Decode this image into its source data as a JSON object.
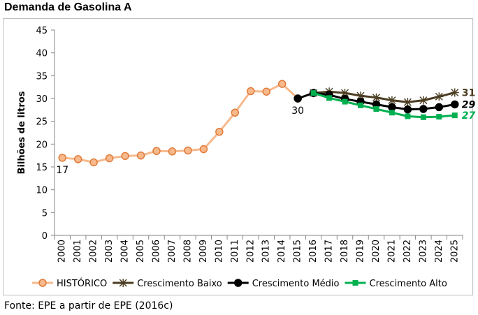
{
  "title": "Demanda de Gasolina A",
  "source": "Fonte: EPE a partir de EPE (2016c)",
  "chart_data": {
    "type": "line",
    "ylabel": "Bilhões de litros",
    "xlabel": "",
    "ylim": [
      0,
      45
    ],
    "y_ticks": [
      0,
      5,
      10,
      15,
      20,
      25,
      30,
      35,
      40,
      45
    ],
    "grid": false,
    "legend_position": "bottom",
    "categories": [
      "2000",
      "2001",
      "2002",
      "2003",
      "2004",
      "2005",
      "2006",
      "2007",
      "2008",
      "2009",
      "2010",
      "2011",
      "2012",
      "2013",
      "2014",
      "2015",
      "2016",
      "2017",
      "2018",
      "2019",
      "2020",
      "2021",
      "2022",
      "2023",
      "2024",
      "2025"
    ],
    "series": [
      {
        "name": "HISTÓRICO",
        "color": "#f7b98c",
        "marker_fill": "#f7b98c",
        "marker_stroke": "#e07b39",
        "marker": "circle",
        "values": [
          17.0,
          16.7,
          16.0,
          16.9,
          17.4,
          17.5,
          18.5,
          18.4,
          18.6,
          18.9,
          22.7,
          26.9,
          31.6,
          31.5,
          33.2,
          30.0,
          null,
          null,
          null,
          null,
          null,
          null,
          null,
          null,
          null,
          null
        ]
      },
      {
        "name": "Crescimento Baixo",
        "color": "#4b3d22",
        "marker_fill": "#4b3d22",
        "marker_stroke": "#4b3d22",
        "marker": "star",
        "values": [
          null,
          null,
          null,
          null,
          null,
          null,
          null,
          null,
          null,
          null,
          null,
          null,
          null,
          null,
          null,
          null,
          31.2,
          31.5,
          31.2,
          30.6,
          30.2,
          29.6,
          29.2,
          29.6,
          30.4,
          31.3
        ]
      },
      {
        "name": "Crescimento Médio",
        "color": "#000000",
        "marker_fill": "#000000",
        "marker_stroke": "#000000",
        "marker": "circle",
        "values": [
          null,
          null,
          null,
          null,
          null,
          null,
          null,
          null,
          null,
          null,
          null,
          null,
          null,
          null,
          null,
          30.0,
          31.2,
          30.8,
          29.9,
          29.3,
          28.7,
          28.1,
          27.6,
          27.7,
          28.1,
          28.7
        ]
      },
      {
        "name": "Crescimento Alto",
        "color": "#00b050",
        "marker_fill": "#00b050",
        "marker_stroke": "#00b050",
        "marker": "square",
        "values": [
          null,
          null,
          null,
          null,
          null,
          null,
          null,
          null,
          null,
          null,
          null,
          null,
          null,
          null,
          null,
          null,
          31.2,
          30.1,
          29.3,
          28.5,
          27.7,
          26.9,
          26.1,
          25.9,
          26.0,
          26.3
        ]
      }
    ],
    "annotations": [
      {
        "text": "17",
        "x": "2000",
        "y": 17.0,
        "place": "below",
        "color": "#000000",
        "bold": false
      },
      {
        "text": "30",
        "x": "2015",
        "y": 30.0,
        "place": "below",
        "color": "#000000",
        "bold": false
      },
      {
        "text": "31",
        "x": "2025",
        "y": 31.3,
        "place": "right",
        "color": "#4b3d22",
        "bold": true
      },
      {
        "text": "29",
        "x": "2025",
        "y": 28.7,
        "place": "right",
        "color": "#000000",
        "bold": true,
        "italic": true
      },
      {
        "text": "27",
        "x": "2025",
        "y": 26.3,
        "place": "right",
        "color": "#00b050",
        "bold": true,
        "italic": true
      }
    ]
  }
}
